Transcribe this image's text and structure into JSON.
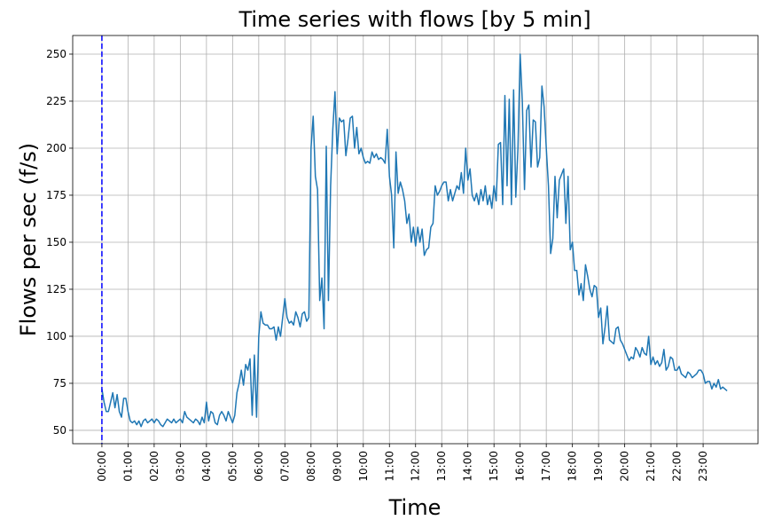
{
  "chart_data": {
    "type": "line",
    "title": "Time series with flows [by 5 min]",
    "x_label": "Time",
    "y_label": "Flows per sec (f/s)",
    "color": "#1f77b4",
    "grid": true,
    "vline_x": 0,
    "vline_color": "#0000ff",
    "xlim": [
      -67,
      1506
    ],
    "ylim": [
      42.9,
      259.9
    ],
    "yticks": [
      50,
      75,
      100,
      125,
      150,
      175,
      200,
      225,
      250
    ],
    "xticks": [
      {
        "value": 0,
        "label": "00:00"
      },
      {
        "value": 60,
        "label": "01:00"
      },
      {
        "value": 120,
        "label": "02:00"
      },
      {
        "value": 180,
        "label": "03:00"
      },
      {
        "value": 240,
        "label": "04:00"
      },
      {
        "value": 300,
        "label": "05:00"
      },
      {
        "value": 360,
        "label": "06:00"
      },
      {
        "value": 420,
        "label": "07:00"
      },
      {
        "value": 480,
        "label": "08:00"
      },
      {
        "value": 540,
        "label": "09:00"
      },
      {
        "value": 600,
        "label": "10:00"
      },
      {
        "value": 660,
        "label": "11:00"
      },
      {
        "value": 720,
        "label": "12:00"
      },
      {
        "value": 780,
        "label": "13:00"
      },
      {
        "value": 840,
        "label": "14:00"
      },
      {
        "value": 900,
        "label": "15:00"
      },
      {
        "value": 960,
        "label": "16:00"
      },
      {
        "value": 1020,
        "label": "17:00"
      },
      {
        "value": 1080,
        "label": "18:00"
      },
      {
        "value": 1140,
        "label": "19:00"
      },
      {
        "value": 1200,
        "label": "20:00"
      },
      {
        "value": 1260,
        "label": "21:00"
      },
      {
        "value": 1320,
        "label": "22:00"
      },
      {
        "value": 1380,
        "label": "23:00"
      }
    ],
    "x": [
      0,
      5,
      10,
      15,
      20,
      25,
      30,
      35,
      40,
      45,
      50,
      55,
      60,
      65,
      70,
      75,
      80,
      85,
      90,
      95,
      100,
      105,
      110,
      115,
      120,
      125,
      130,
      135,
      140,
      145,
      150,
      155,
      160,
      165,
      170,
      175,
      180,
      185,
      190,
      195,
      200,
      205,
      210,
      215,
      220,
      225,
      230,
      235,
      240,
      245,
      250,
      255,
      260,
      265,
      270,
      275,
      280,
      285,
      290,
      295,
      300,
      305,
      310,
      315,
      320,
      325,
      330,
      335,
      340,
      345,
      350,
      355,
      360,
      365,
      370,
      375,
      380,
      385,
      390,
      395,
      400,
      405,
      410,
      415,
      420,
      425,
      430,
      435,
      440,
      445,
      450,
      455,
      460,
      465,
      470,
      475,
      480,
      485,
      490,
      495,
      500,
      505,
      510,
      515,
      520,
      525,
      530,
      535,
      540,
      545,
      550,
      555,
      560,
      565,
      570,
      575,
      580,
      585,
      590,
      595,
      600,
      605,
      610,
      615,
      620,
      625,
      630,
      635,
      640,
      645,
      650,
      655,
      660,
      665,
      670,
      675,
      680,
      685,
      690,
      695,
      700,
      705,
      710,
      715,
      720,
      725,
      730,
      735,
      740,
      745,
      750,
      755,
      760,
      765,
      770,
      775,
      780,
      785,
      790,
      795,
      800,
      805,
      810,
      815,
      820,
      825,
      830,
      835,
      840,
      845,
      850,
      855,
      860,
      865,
      870,
      875,
      880,
      885,
      890,
      895,
      900,
      905,
      910,
      915,
      920,
      925,
      930,
      935,
      940,
      945,
      950,
      955,
      960,
      965,
      970,
      975,
      980,
      985,
      990,
      995,
      1000,
      1005,
      1010,
      1015,
      1020,
      1025,
      1030,
      1035,
      1040,
      1045,
      1050,
      1055,
      1060,
      1065,
      1070,
      1075,
      1080,
      1085,
      1090,
      1095,
      1100,
      1105,
      1110,
      1115,
      1120,
      1125,
      1130,
      1135,
      1140,
      1145,
      1150,
      1155,
      1160,
      1165,
      1170,
      1175,
      1180,
      1185,
      1190,
      1195,
      1200,
      1205,
      1210,
      1215,
      1220,
      1225,
      1230,
      1235,
      1240,
      1245,
      1250,
      1255,
      1260,
      1265,
      1270,
      1275,
      1280,
      1285,
      1290,
      1295,
      1300,
      1305,
      1310,
      1315,
      1320,
      1325,
      1330,
      1335,
      1340,
      1345,
      1350,
      1355,
      1360,
      1365,
      1370,
      1375,
      1380,
      1385,
      1390,
      1395,
      1400,
      1405,
      1410,
      1415,
      1420,
      1425,
      1430,
      1435
    ],
    "values": [
      72,
      65,
      60,
      60,
      65,
      70,
      62,
      69,
      60,
      57,
      67,
      67,
      60,
      55,
      54,
      55,
      53,
      55,
      52,
      55,
      56,
      54,
      55,
      56,
      54,
      56,
      55,
      53,
      52,
      54,
      56,
      55,
      54,
      56,
      54,
      55,
      56,
      54,
      60,
      57,
      56,
      55,
      54,
      56,
      55,
      53,
      57,
      54,
      65,
      55,
      60,
      59,
      54,
      53,
      58,
      60,
      58,
      55,
      60,
      57,
      54,
      58,
      70,
      75,
      82,
      74,
      85,
      82,
      88,
      58,
      90,
      57,
      100,
      113,
      107,
      106,
      106,
      104,
      104,
      105,
      98,
      105,
      100,
      110,
      120,
      110,
      107,
      108,
      106,
      113,
      110,
      105,
      112,
      113,
      108,
      110,
      200,
      217,
      185,
      178,
      119,
      131,
      104,
      201,
      119,
      180,
      210,
      230,
      197,
      216,
      214,
      215,
      196,
      205,
      216,
      217,
      200,
      211,
      197,
      200,
      195,
      192,
      193,
      192,
      198,
      195,
      197,
      194,
      195,
      194,
      192,
      210,
      185,
      175,
      147,
      198,
      176,
      182,
      178,
      172,
      160,
      165,
      150,
      158,
      148,
      158,
      150,
      157,
      143,
      146,
      147,
      158,
      160,
      180,
      175,
      177,
      180,
      182,
      182,
      172,
      178,
      172,
      176,
      180,
      178,
      187,
      176,
      200,
      183,
      189,
      175,
      172,
      176,
      170,
      178,
      172,
      180,
      170,
      175,
      168,
      180,
      172,
      202,
      203,
      170,
      228,
      180,
      226,
      170,
      231,
      174,
      200,
      250,
      225,
      178,
      220,
      223,
      190,
      215,
      214,
      190,
      195,
      233,
      222,
      200,
      180,
      144,
      152,
      185,
      163,
      183,
      186,
      189,
      160,
      185,
      146,
      150,
      135,
      135,
      122,
      128,
      119,
      138,
      132,
      125,
      121,
      127,
      126,
      110,
      115,
      96,
      105,
      116,
      98,
      97,
      96,
      104,
      105,
      98,
      96,
      93,
      90,
      87,
      89,
      88,
      94,
      92,
      89,
      94,
      91,
      90,
      100,
      85,
      89,
      85,
      87,
      84,
      86,
      93,
      82,
      84,
      89,
      88,
      82,
      82,
      84,
      80,
      79,
      78,
      81,
      80,
      78,
      79,
      80,
      82,
      82,
      80,
      75,
      76,
      76,
      72,
      75,
      73,
      77,
      72,
      73,
      72,
      71
    ]
  }
}
